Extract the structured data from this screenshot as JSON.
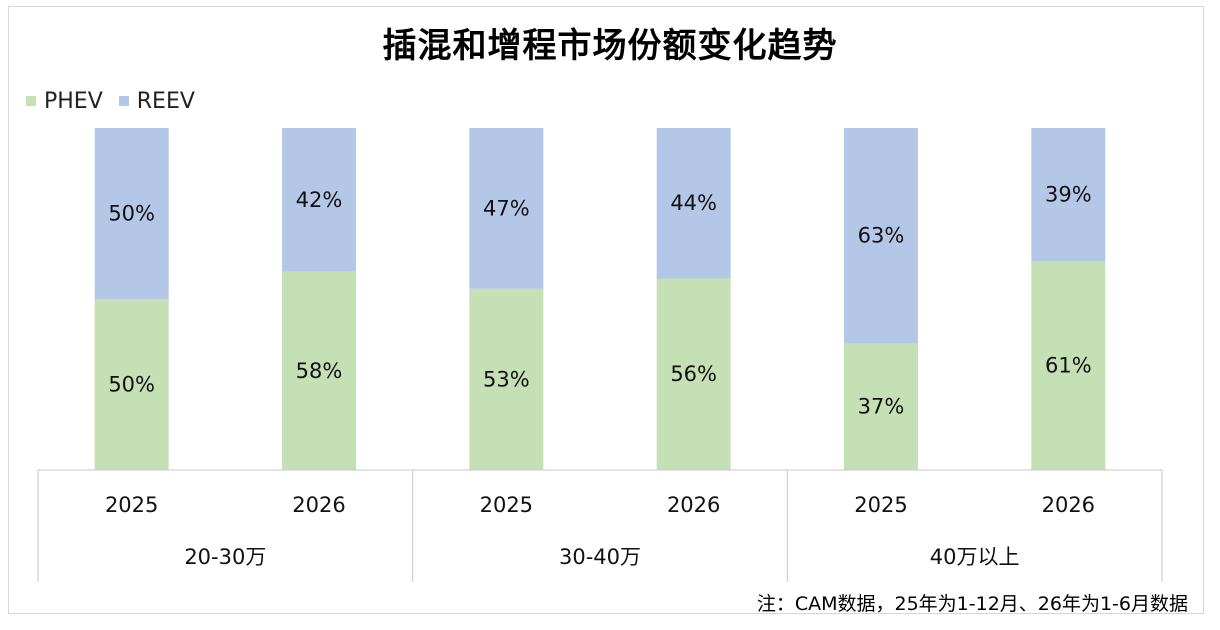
{
  "chart_data": {
    "type": "bar",
    "stacked": true,
    "percent_stacked": true,
    "title": "插混和增程市场份额变化趋势",
    "legend_position": "top-left",
    "grid": false,
    "ylim": [
      0,
      100
    ],
    "groups": [
      {
        "label": "20-30万",
        "categories": [
          "2025",
          "2026"
        ]
      },
      {
        "label": "30-40万",
        "categories": [
          "2025",
          "2026"
        ]
      },
      {
        "label": "40万以上",
        "categories": [
          "2025",
          "2026"
        ]
      }
    ],
    "series": [
      {
        "name": "PHEV",
        "color": "#c5e0b4",
        "values": [
          50,
          58,
          53,
          56,
          37,
          61
        ],
        "labels": [
          "50%",
          "58%",
          "53%",
          "56%",
          "37%",
          "61%"
        ]
      },
      {
        "name": "REEV",
        "color": "#b4c7e7",
        "values": [
          50,
          42,
          47,
          44,
          63,
          39
        ],
        "labels": [
          "50%",
          "42%",
          "47%",
          "44%",
          "63%",
          "39%"
        ]
      }
    ],
    "footnote": "注：CAM数据，25年为1-12月、26年为1-6月数据"
  }
}
